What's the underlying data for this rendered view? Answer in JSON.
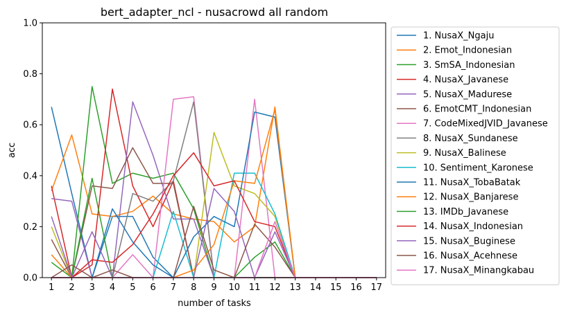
{
  "chart_data": {
    "type": "line",
    "title": "bert_adapter_ncl - nusacrowd all random",
    "xlabel": "number of tasks",
    "ylabel": "acc",
    "xlim": [
      0.55,
      17.45
    ],
    "ylim": [
      0,
      1
    ],
    "x": [
      1,
      2,
      3,
      4,
      5,
      6,
      7,
      8,
      9,
      10,
      11,
      12,
      13,
      14,
      15,
      16,
      17
    ],
    "x_ticks": [
      "1",
      "2",
      "3",
      "4",
      "5",
      "6",
      "7",
      "8",
      "9",
      "10",
      "11",
      "12",
      "13",
      "14",
      "15",
      "16",
      "17"
    ],
    "y_ticks": [
      "0.0",
      "0.2",
      "0.4",
      "0.6",
      "0.8",
      "1.0"
    ],
    "legend_position": "outside-right",
    "grid": false,
    "series": [
      {
        "name": "1. NusaX_Ngaju",
        "color": "#1f77b4",
        "values": [
          0.67,
          0.33,
          0.0,
          0.24,
          0.24,
          0.08,
          0.0,
          0.0,
          0.0,
          0.0,
          0.0,
          0.0,
          0.0,
          0.0,
          0.0,
          0.0,
          0.0
        ]
      },
      {
        "name": "2. Emot_Indonesian",
        "color": "#ff7f0e",
        "values": [
          0.34,
          0.56,
          0.25,
          0.24,
          0.26,
          0.32,
          0.25,
          0.23,
          0.22,
          0.14,
          0.2,
          0.67,
          0.0,
          0.0,
          0.0,
          0.0,
          0.0
        ]
      },
      {
        "name": "3. SmSA_Indonesian",
        "color": "#2ca02c",
        "values": [
          0.06,
          0.0,
          0.75,
          0.37,
          0.41,
          0.39,
          0.41,
          0.27,
          0.0,
          0.0,
          0.0,
          0.0,
          0.0,
          0.0,
          0.0,
          0.0,
          0.0
        ]
      },
      {
        "name": "4. NusaX_Javanese",
        "color": "#d62728",
        "values": [
          0.36,
          0.0,
          0.05,
          0.74,
          0.36,
          0.2,
          0.38,
          0.0,
          0.0,
          0.0,
          0.0,
          0.0,
          0.0,
          0.0,
          0.0,
          0.0,
          0.0
        ]
      },
      {
        "name": "5. NusaX_Madurese",
        "color": "#9467bd",
        "values": [
          0.31,
          0.3,
          0.0,
          0.0,
          0.69,
          0.48,
          0.23,
          0.23,
          0.0,
          0.0,
          0.0,
          0.0,
          0.0,
          0.0,
          0.0,
          0.0,
          0.0
        ]
      },
      {
        "name": "6. EmotCMT_Indonesian",
        "color": "#8c564b",
        "values": [
          0.15,
          0.0,
          0.36,
          0.35,
          0.51,
          0.37,
          0.37,
          0.0,
          0.0,
          0.0,
          0.0,
          0.0,
          0.0,
          0.0,
          0.0,
          0.0,
          0.0
        ]
      },
      {
        "name": "7. CodeMixedJVID_Javanese",
        "color": "#e377c2",
        "values": [
          0.0,
          0.0,
          0.0,
          0.0,
          0.09,
          0.0,
          0.7,
          0.71,
          0.0,
          0.0,
          0.7,
          0.0,
          0.0,
          0.0,
          0.0,
          0.0,
          0.0
        ]
      },
      {
        "name": "8. NusaX_Sundanese",
        "color": "#7f7f7f",
        "values": [
          0.0,
          0.0,
          0.0,
          0.0,
          0.33,
          0.3,
          0.38,
          0.69,
          0.0,
          0.0,
          0.0,
          0.0,
          0.0,
          0.0,
          0.0,
          0.0,
          0.0
        ]
      },
      {
        "name": "9. NusaX_Balinese",
        "color": "#bcbd22",
        "values": [
          0.2,
          0.0,
          0.0,
          0.0,
          0.0,
          0.0,
          0.0,
          0.0,
          0.57,
          0.36,
          0.33,
          0.24,
          0.0,
          0.0,
          0.0,
          0.0,
          0.0
        ]
      },
      {
        "name": "10. Sentiment_Karonese",
        "color": "#17becf",
        "values": [
          0.0,
          0.0,
          0.0,
          0.0,
          0.0,
          0.0,
          0.26,
          0.0,
          0.0,
          0.41,
          0.41,
          0.25,
          0.0,
          0.0,
          0.0,
          0.0,
          0.0
        ]
      },
      {
        "name": "11. NusaX_TobaBatak",
        "color": "#1f77b4",
        "values": [
          0.0,
          0.0,
          0.0,
          0.27,
          0.14,
          0.05,
          0.0,
          0.16,
          0.24,
          0.2,
          0.65,
          0.63,
          0.0,
          0.0,
          0.0,
          0.0,
          0.0
        ]
      },
      {
        "name": "12. NusaX_Banjarese",
        "color": "#ff7f0e",
        "values": [
          0.09,
          0.0,
          0.0,
          0.0,
          0.0,
          0.0,
          0.0,
          0.03,
          0.13,
          0.38,
          0.37,
          0.66,
          0.0,
          0.0,
          0.0,
          0.0,
          0.0
        ]
      },
      {
        "name": "13. IMDb_Javanese",
        "color": "#2ca02c",
        "values": [
          0.0,
          0.0,
          0.39,
          0.0,
          0.0,
          0.0,
          0.0,
          0.0,
          0.0,
          0.0,
          0.08,
          0.14,
          0.0,
          0.0,
          0.0,
          0.0,
          0.0
        ]
      },
      {
        "name": "14. NusaX_Indonesian",
        "color": "#d62728",
        "values": [
          0.0,
          0.0,
          0.07,
          0.06,
          0.13,
          0.25,
          0.4,
          0.49,
          0.36,
          0.38,
          0.22,
          0.2,
          0.0,
          0.0,
          0.0,
          0.0,
          0.0
        ]
      },
      {
        "name": "15. NusaX_Buginese",
        "color": "#9467bd",
        "values": [
          0.24,
          0.0,
          0.18,
          0.0,
          0.0,
          0.0,
          0.0,
          0.0,
          0.35,
          0.26,
          0.0,
          0.18,
          0.0,
          0.0,
          0.0,
          0.0,
          0.0
        ]
      },
      {
        "name": "16. NusaX_Acehnese",
        "color": "#8c564b",
        "values": [
          0.0,
          0.05,
          0.0,
          0.03,
          0.0,
          0.0,
          0.0,
          0.28,
          0.03,
          0.0,
          0.21,
          0.12,
          0.0,
          0.0,
          0.0,
          0.0,
          0.0
        ]
      },
      {
        "name": "17. NusaX_Minangkabau",
        "color": "#e377c2",
        "values": [
          0.0,
          0.0,
          0.0,
          0.0,
          0.0,
          0.0,
          0.0,
          0.0,
          0.0,
          0.0,
          0.0,
          0.22,
          0.0,
          0.0,
          0.0,
          0.0,
          0.0
        ]
      }
    ]
  }
}
